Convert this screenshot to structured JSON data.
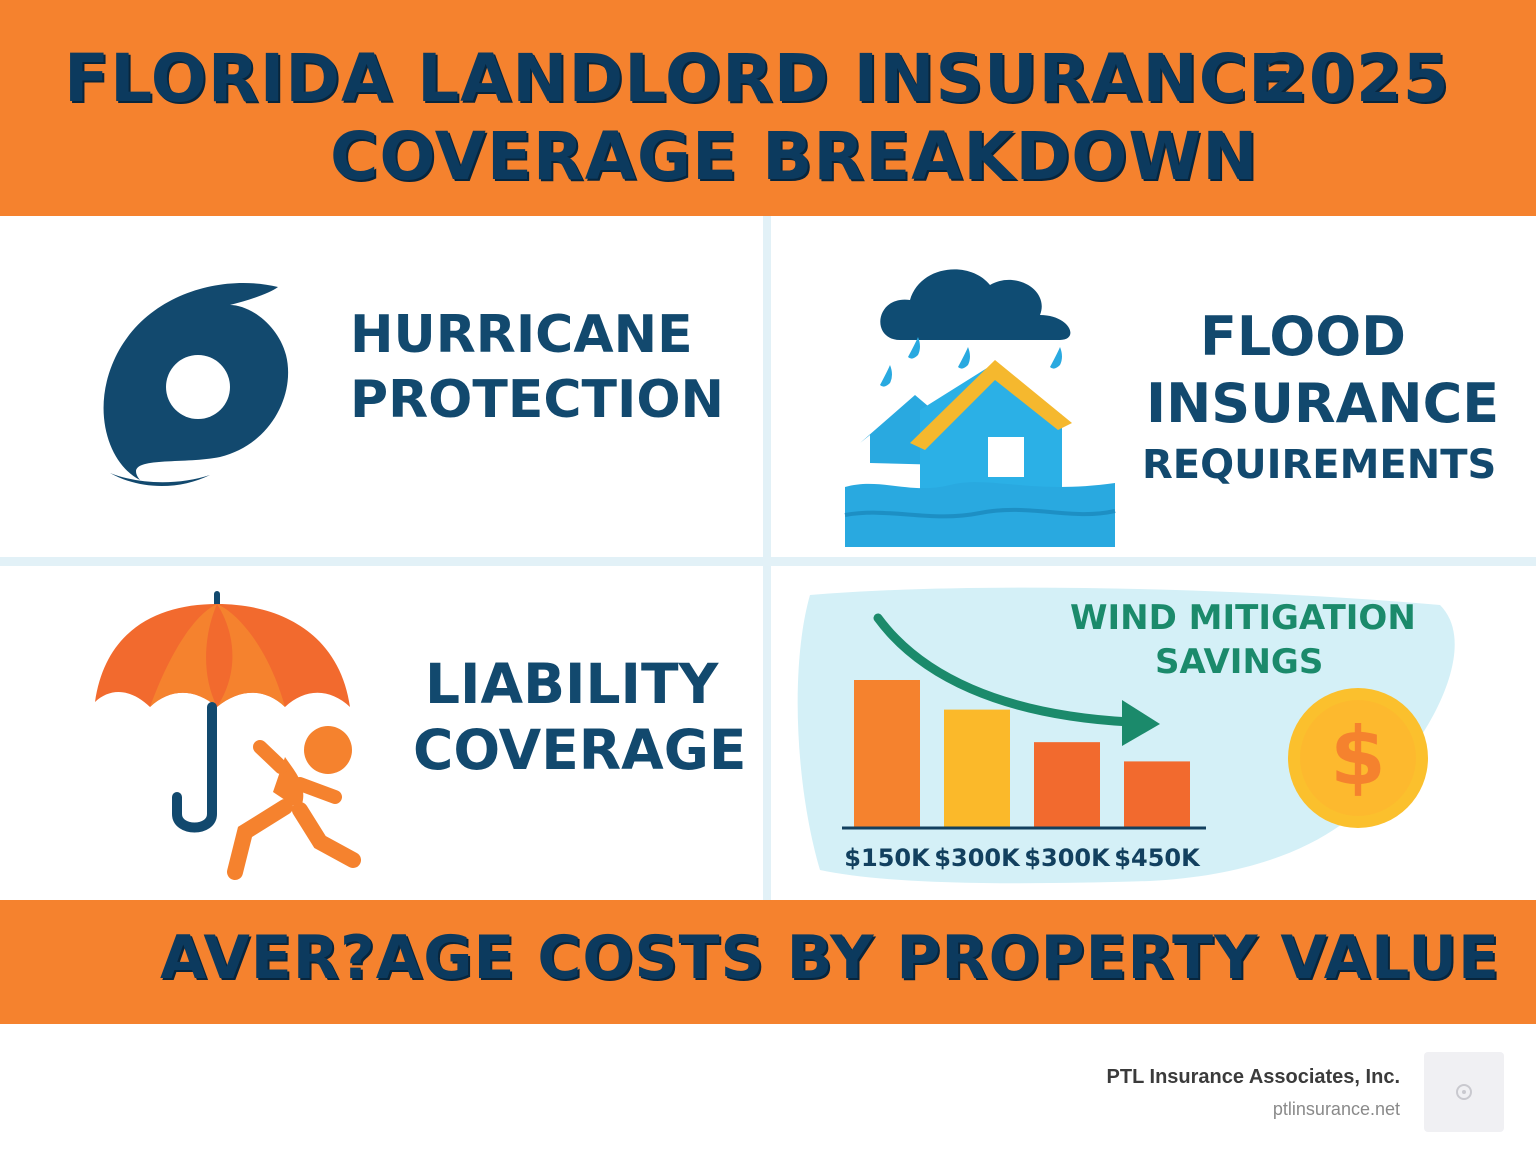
{
  "header": {
    "title_line1": "FLORIDA LANDLORD INSURANCE",
    "title_year": "2025",
    "title_line2": "COVERAGE BREAKDOWN"
  },
  "panels": {
    "hurricane": {
      "line1": "HURRICANE",
      "line2": "PROTECTION",
      "icon": "hurricane-icon"
    },
    "flood": {
      "line1": "FLOOD",
      "line2": "INSURANCE",
      "line3": "REQUIREMENTS",
      "icon": "flooded-house-icon"
    },
    "liability": {
      "line1": "LIABILITY",
      "line2": "COVERAGE",
      "icon": "umbrella-falling-person-icon"
    },
    "wind": {
      "line1": "WIND MITIGATION",
      "line2": "SAVINGS",
      "icon": "dollar-coin-icon"
    }
  },
  "chart_data": {
    "type": "bar",
    "categories": [
      "$150K",
      "$300K",
      "$300K",
      "$450K"
    ],
    "values": [
      100,
      80,
      58,
      45
    ],
    "colors": [
      "#f5822e",
      "#fbb92a",
      "#f26a2e",
      "#f26a2e"
    ],
    "trend": "down"
  },
  "footer": {
    "banner_text": "AVER?AGE COSTS BY PROPERTY VALUE",
    "company": "PTL Insurance Associates, Inc.",
    "website": "ptlinsurance.net"
  },
  "colors": {
    "orange": "#f5822e",
    "navy": "#0c3a5e",
    "teal": "#1b8a6b",
    "light_blue": "#d4f0f7"
  }
}
